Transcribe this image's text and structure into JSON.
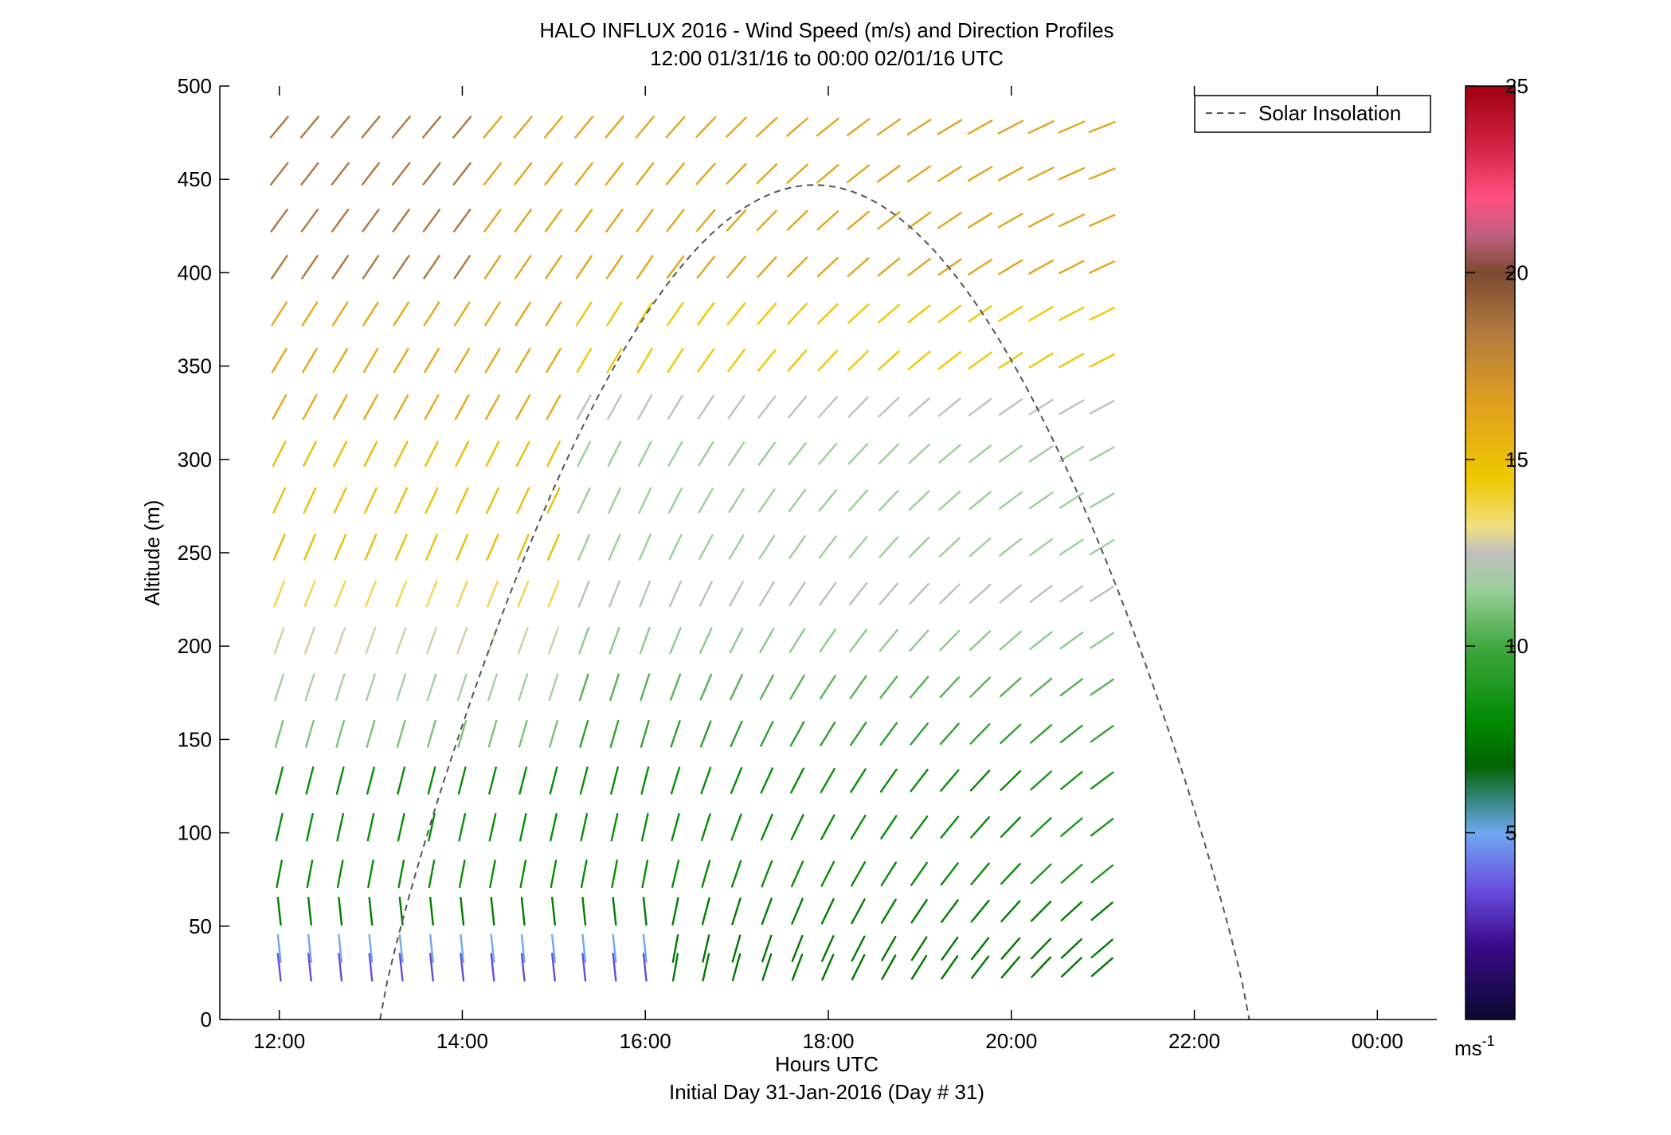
{
  "chart_data": {
    "type": "quiver",
    "title_line1": "HALO INFLUX 2016 - Wind Speed (m/s) and Direction Profiles",
    "title_line2": "12:00 01/31/16 to 00:00 02/01/16  UTC",
    "xlabel": "Hours UTC",
    "xlabel_sub": "Initial Day 31-Jan-2016 (Day # 31)",
    "ylabel": "Altitude (m)",
    "x_range_hours": [
      11.35,
      24.65
    ],
    "ylim": [
      0,
      500
    ],
    "x_ticks": [
      {
        "value": 12,
        "label": "12:00"
      },
      {
        "value": 14,
        "label": "14:00"
      },
      {
        "value": 16,
        "label": "16:00"
      },
      {
        "value": 18,
        "label": "18:00"
      },
      {
        "value": 20,
        "label": "20:00"
      },
      {
        "value": 22,
        "label": "22:00"
      },
      {
        "value": 24,
        "label": "00:00"
      }
    ],
    "y_ticks": [
      0,
      50,
      100,
      150,
      200,
      250,
      300,
      350,
      400,
      450,
      500
    ],
    "grid": false,
    "legend": {
      "position": "top-right",
      "entries": [
        {
          "name": "Solar Insolation",
          "style": "dashed",
          "color": "#555555"
        }
      ]
    },
    "colorbar": {
      "min": 0,
      "max": 25,
      "ticks": [
        5,
        10,
        15,
        20,
        25
      ],
      "unit_label": "ms",
      "unit_exponent": "-1",
      "stops": [
        {
          "v": 0,
          "c": "#0a0a2e"
        },
        {
          "v": 2,
          "c": "#3a0a8a"
        },
        {
          "v": 3.5,
          "c": "#6a50e0"
        },
        {
          "v": 5,
          "c": "#6fa8f0"
        },
        {
          "v": 5.8,
          "c": "#3a8a8a"
        },
        {
          "v": 6.8,
          "c": "#006400"
        },
        {
          "v": 8,
          "c": "#008a00"
        },
        {
          "v": 10,
          "c": "#40a840"
        },
        {
          "v": 11.5,
          "c": "#9ad09a"
        },
        {
          "v": 12.5,
          "c": "#c0c0c0"
        },
        {
          "v": 13.2,
          "c": "#f0e080"
        },
        {
          "v": 14.5,
          "c": "#f0c800"
        },
        {
          "v": 16.5,
          "c": "#e0a020"
        },
        {
          "v": 18.5,
          "c": "#b07840"
        },
        {
          "v": 20,
          "c": "#7a4a30"
        },
        {
          "v": 21,
          "c": "#c06080"
        },
        {
          "v": 22,
          "c": "#ff5080"
        },
        {
          "v": 23.5,
          "c": "#d02040"
        },
        {
          "v": 25,
          "c": "#a00010"
        }
      ]
    },
    "solar_insolation": {
      "start_hour": 13.1,
      "end_hour": 22.6,
      "peak_hour": 17.85,
      "peak_altitude_m": 447
    },
    "wind_field": {
      "time_start_hour": 12.0,
      "time_step_hours": 0.333,
      "time_count": 28,
      "altitudes_m": [
        28,
        38,
        58,
        78,
        103,
        128,
        153,
        178,
        203,
        228,
        253,
        278,
        303,
        328,
        353,
        378,
        403,
        428,
        453,
        478
      ],
      "description": "rows of wind-vector segments; direction from north vs time/altitude, colored by speed"
    }
  }
}
